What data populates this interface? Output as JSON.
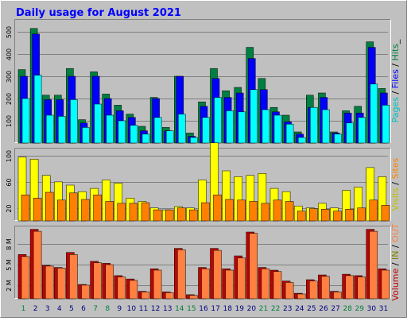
{
  "chart_data": {
    "type": "bar",
    "title": "Daily usage for August 2021",
    "categories": [
      "1",
      "2",
      "3",
      "4",
      "5",
      "6",
      "7",
      "8",
      "9",
      "10",
      "11",
      "12",
      "13",
      "14",
      "15",
      "16",
      "17",
      "18",
      "19",
      "20",
      "21",
      "22",
      "23",
      "24",
      "25",
      "26",
      "27",
      "28",
      "29",
      "30",
      "31"
    ],
    "weekend_days": [
      "1",
      "7",
      "8",
      "14",
      "15",
      "21",
      "22",
      "28",
      "29"
    ],
    "colors": {
      "background": "#c0c0c0",
      "title": "#0000ff",
      "hits": "#008040",
      "files": "#0000ff",
      "pages": "#00ffff",
      "visits": "#ffff00",
      "sites": "#ff8000",
      "kbytes_in": "#c00000",
      "kbytes_out": "#ff8040",
      "weekday_label": "#000080",
      "weekend_label": "#008040"
    },
    "panels": [
      {
        "id": "hits",
        "ylim": [
          0,
          550
        ],
        "yticks": [
          "100",
          "200",
          "300",
          "400",
          "500"
        ],
        "ytick_values": [
          100,
          200,
          300,
          400,
          500
        ],
        "side_label_parts": [
          {
            "text": "Pages",
            "color": "#00c0c0"
          },
          {
            "text": " / ",
            "color": "#000000"
          },
          {
            "text": "Files",
            "color": "#0000ff"
          },
          {
            "text": " / ",
            "color": "#000000"
          },
          {
            "text": "Hits",
            "color": "#008040"
          },
          {
            "text": "_",
            "color": "#000000"
          }
        ],
        "series": [
          {
            "name": "Hits",
            "color": "#008040",
            "values": [
              330,
              515,
              215,
              215,
              335,
              105,
              320,
              220,
              170,
              130,
              75,
              205,
              70,
              300,
              45,
              185,
              335,
              235,
              250,
              430,
              290,
              160,
              125,
              50,
              215,
              225,
              50,
              145,
              165,
              455,
              245
            ]
          },
          {
            "name": "Files",
            "color": "#0000ff",
            "values": [
              300,
              490,
              195,
              195,
              300,
              90,
              300,
              200,
              145,
              115,
              55,
              200,
              55,
              300,
              30,
              165,
              290,
              205,
              225,
              380,
              240,
              140,
              95,
              40,
              160,
              205,
              45,
              135,
              135,
              430,
              225
            ]
          },
          {
            "name": "Pages",
            "color": "#00ffff",
            "values": [
              200,
              305,
              125,
              120,
              195,
              70,
              175,
              125,
              100,
              80,
              40,
              115,
              55,
              130,
              25,
              115,
              205,
              145,
              140,
              240,
              150,
              125,
              85,
              25,
              160,
              150,
              40,
              90,
              115,
              265,
              170
            ]
          }
        ]
      },
      {
        "id": "visits",
        "ylim": [
          0,
          110
        ],
        "yticks": [
          "20",
          "60",
          "100"
        ],
        "ytick_values": [
          20,
          60,
          100
        ],
        "side_label_parts": [
          {
            "text": "Visits",
            "color": "#c0c000"
          },
          {
            "text": " / ",
            "color": "#000000"
          },
          {
            "text": "Sites",
            "color": "#ff8000"
          }
        ],
        "series": [
          {
            "name": "Visits",
            "color": "#ffff00",
            "values": [
              98,
              95,
              70,
              60,
              55,
              45,
              50,
              63,
              58,
              35,
              30,
              20,
              17,
              22,
              20,
              63,
              120,
              77,
              68,
              70,
              73,
              50,
              45,
              23,
              20,
              27,
              20,
              47,
              52,
              82,
              68
            ]
          },
          {
            "name": "Sites",
            "color": "#ff8000",
            "values": [
              40,
              35,
              44,
              32,
              43,
              33,
              40,
              30,
              27,
              27,
              28,
              17,
              17,
              20,
              17,
              28,
              40,
              33,
              32,
              30,
              27,
              32,
              30,
              15,
              19,
              18,
              15,
              18,
              20,
              32,
              24
            ]
          }
        ]
      },
      {
        "id": "volume",
        "ylim": [
          0,
          10.5
        ],
        "yticks": [
          "2 M",
          "5 M",
          "8 M"
        ],
        "ytick_values": [
          2,
          5,
          8
        ],
        "side_label_parts": [
          {
            "text": "Volume",
            "color": "#c00000"
          },
          {
            "text": " / ",
            "color": "#000000"
          },
          {
            "text": "IN",
            "color": "#808000"
          },
          {
            "text": " / ",
            "color": "#000000"
          },
          {
            "text": "OUT",
            "color": "#ff8040"
          }
        ],
        "series": [
          {
            "name": "KBytes In",
            "color": "#c00000",
            "values": [
              6.5,
              10.2,
              4.9,
              4.6,
              6.8,
              2.1,
              5.5,
              5.2,
              3.4,
              2.9,
              1.1,
              4.4,
              1.0,
              7.4,
              0.6,
              4.6,
              7.4,
              4.4,
              6.3,
              9.8,
              4.6,
              4.2,
              2.6,
              0.8,
              2.8,
              3.5,
              1.1,
              3.6,
              3.4,
              10.2,
              4.4
            ]
          },
          {
            "name": "KBytes Out",
            "color": "#ff8040",
            "values": [
              6.2,
              9.9,
              4.8,
              4.5,
              6.5,
              2.0,
              5.3,
              5.0,
              3.2,
              2.7,
              1.0,
              4.2,
              0.9,
              7.2,
              0.5,
              4.4,
              7.1,
              4.2,
              6.0,
              9.6,
              4.4,
              4.0,
              2.4,
              0.7,
              2.6,
              3.3,
              1.0,
              3.4,
              3.2,
              9.9,
              4.2
            ]
          }
        ]
      }
    ]
  }
}
